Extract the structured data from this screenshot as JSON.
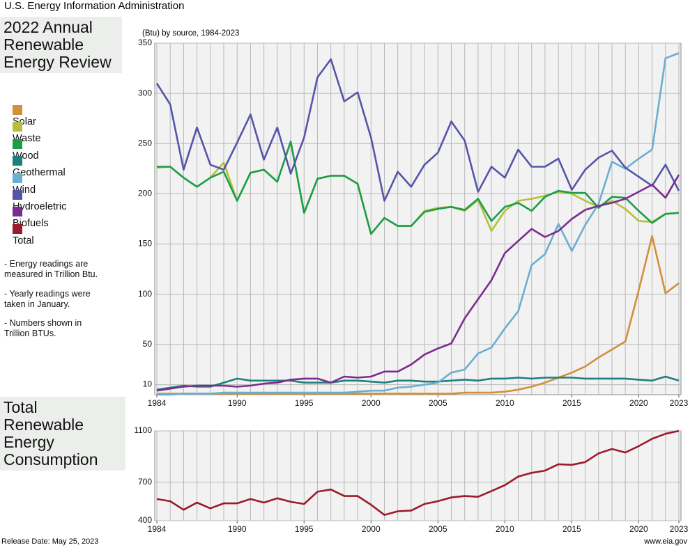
{
  "header": "U.S. Energy Information Administration",
  "notes": [
    "- Energy readings are measured in Trillion Btu.",
    "- Yearly readings were taken in January.",
    "- Numbers shown in Trillion BTUs."
  ],
  "footer": {
    "left": "Release Date: May 25, 2023",
    "right": "www.eia.gov"
  },
  "chart_data": [
    {
      "type": "line",
      "title": "2022 Annual Renewable Energy Review",
      "subtitle": "(Btu) by source, 1984-2023",
      "x": [
        1984,
        1985,
        1986,
        1987,
        1988,
        1989,
        1990,
        1991,
        1992,
        1993,
        1994,
        1995,
        1996,
        1997,
        1998,
        1999,
        2000,
        2001,
        2002,
        2003,
        2004,
        2005,
        2006,
        2007,
        2008,
        2009,
        2010,
        2011,
        2012,
        2013,
        2014,
        2015,
        2016,
        2017,
        2018,
        2019,
        2020,
        2021,
        2022,
        2023
      ],
      "xlim": [
        1984,
        2023
      ],
      "xticks": [
        1984,
        1990,
        1995,
        2000,
        2005,
        2010,
        2015,
        2020,
        2023
      ],
      "ylim": [
        0,
        350
      ],
      "yticks": [
        10,
        50,
        100,
        150,
        200,
        250,
        300,
        350
      ],
      "grid": true,
      "series": [
        {
          "name": "Solar",
          "color": "#d0913a",
          "values": [
            1,
            1,
            1,
            1,
            1,
            1,
            1,
            1,
            1,
            1,
            1,
            1,
            1,
            1,
            1,
            1,
            1,
            1,
            1,
            1,
            1,
            1,
            1,
            2,
            2,
            2,
            3,
            5,
            8,
            12,
            17,
            22,
            28,
            37,
            45,
            53,
            104,
            158,
            101,
            111
          ]
        },
        {
          "name": "Waste",
          "color": "#b5bf3a",
          "values": [
            226,
            227,
            216,
            207,
            216,
            231,
            193,
            221,
            224,
            212,
            252,
            181,
            215,
            218,
            218,
            210,
            160,
            176,
            168,
            168,
            183,
            186,
            187,
            183,
            194,
            163,
            183,
            193,
            195,
            198,
            202,
            200,
            193,
            187,
            193,
            185,
            173,
            172,
            180,
            181
          ]
        },
        {
          "name": "Wood",
          "color": "#1a9e4a",
          "values": [
            227,
            227,
            216,
            207,
            216,
            222,
            193,
            221,
            224,
            212,
            252,
            181,
            215,
            218,
            218,
            210,
            160,
            176,
            168,
            168,
            182,
            185,
            187,
            184,
            195,
            173,
            187,
            191,
            183,
            197,
            203,
            201,
            201,
            186,
            197,
            196,
            183,
            171,
            180,
            181
          ]
        },
        {
          "name": "Geothermal",
          "color": "#1f7f80",
          "values": [
            5,
            7,
            9,
            8,
            8,
            12,
            16,
            14,
            14,
            14,
            14,
            12,
            12,
            12,
            14,
            14,
            13,
            12,
            14,
            14,
            13,
            13,
            14,
            15,
            14,
            16,
            16,
            17,
            16,
            17,
            17,
            17,
            16,
            16,
            16,
            16,
            15,
            14,
            18,
            14
          ]
        },
        {
          "name": "Wind",
          "color": "#6aaed0",
          "values": [
            0,
            0,
            1,
            1,
            1,
            2,
            2,
            2,
            2,
            2,
            2,
            2,
            2,
            2,
            2,
            3,
            4,
            4,
            7,
            8,
            10,
            12,
            22,
            25,
            41,
            47,
            66,
            83,
            129,
            140,
            170,
            143,
            169,
            190,
            232,
            225,
            235,
            244,
            335,
            340
          ]
        },
        {
          "name": "Hydroeletric",
          "color": "#5555a8",
          "values": [
            310,
            289,
            224,
            266,
            229,
            224,
            251,
            279,
            234,
            266,
            220,
            256,
            316,
            334,
            292,
            301,
            256,
            193,
            222,
            207,
            229,
            241,
            272,
            253,
            202,
            227,
            216,
            244,
            227,
            227,
            235,
            204,
            224,
            236,
            243,
            226,
            217,
            208,
            229,
            203
          ]
        },
        {
          "name": "Biofuels",
          "color": "#7b2d8e",
          "values": [
            4,
            6,
            8,
            9,
            9,
            9,
            8,
            9,
            11,
            12,
            15,
            16,
            16,
            12,
            18,
            17,
            18,
            23,
            23,
            30,
            40,
            46,
            51,
            76,
            95,
            114,
            141,
            153,
            165,
            157,
            163,
            175,
            184,
            188,
            191,
            195,
            202,
            209,
            196,
            219
          ]
        }
      ]
    },
    {
      "type": "line",
      "title": "Total Renewable Energy Consumption",
      "x": [
        1984,
        1985,
        1986,
        1987,
        1988,
        1989,
        1990,
        1991,
        1992,
        1993,
        1994,
        1995,
        1996,
        1997,
        1998,
        1999,
        2000,
        2001,
        2002,
        2003,
        2004,
        2005,
        2006,
        2007,
        2008,
        2009,
        2010,
        2011,
        2012,
        2013,
        2014,
        2015,
        2016,
        2017,
        2018,
        2019,
        2020,
        2021,
        2022,
        2023
      ],
      "xlim": [
        1984,
        2023
      ],
      "xticks": [
        1984,
        1990,
        1995,
        2000,
        2005,
        2010,
        2015,
        2020,
        2023
      ],
      "ylim": [
        400,
        1100
      ],
      "yticks": [
        400,
        700,
        1100
      ],
      "grid": true,
      "series": [
        {
          "name": "Total",
          "color": "#9a1b2a",
          "values": [
            569,
            552,
            485,
            541,
            496,
            535,
            535,
            569,
            541,
            575,
            547,
            530,
            626,
            643,
            592,
            592,
            524,
            445,
            473,
            479,
            530,
            552,
            581,
            592,
            586,
            631,
            677,
            744,
            773,
            790,
            840,
            835,
            857,
            925,
            959,
            931,
            981,
            1038,
            1077,
            1100
          ]
        }
      ]
    }
  ]
}
